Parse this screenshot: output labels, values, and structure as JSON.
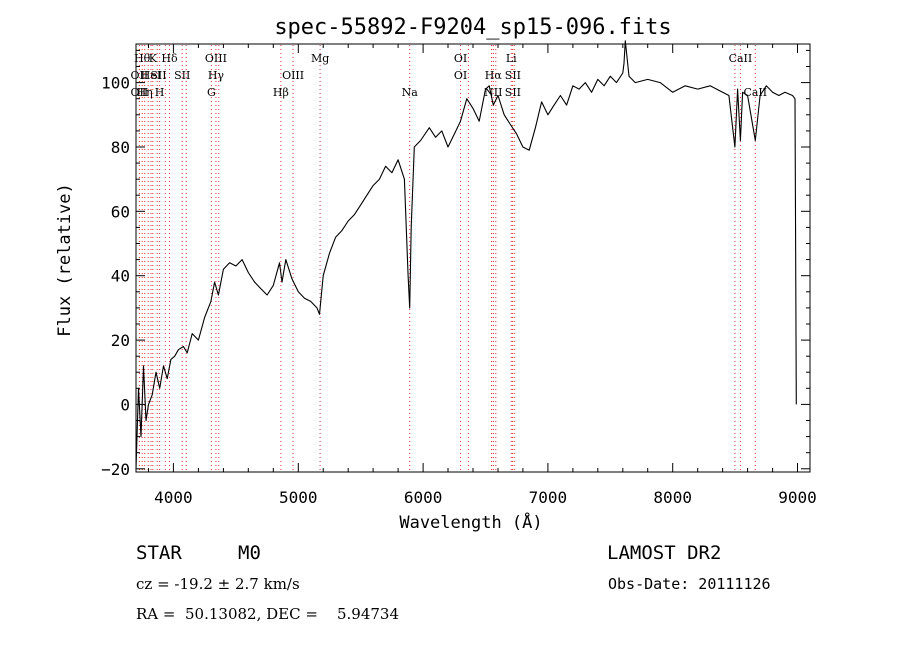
{
  "chart_data": {
    "type": "line",
    "title": "spec-55892-F9204_sp15-096.fits",
    "xlabel": "Wavelength (Å)",
    "ylabel": "Flux (relative)",
    "xlim": [
      3700,
      9100
    ],
    "ylim": [
      -21,
      112
    ],
    "xticks": [
      4000,
      5000,
      6000,
      7000,
      8000,
      9000
    ],
    "yticks": [
      -20,
      0,
      20,
      40,
      60,
      80,
      100
    ],
    "grid": false,
    "line_colors": {
      "line_marker": "#dd3333",
      "spectrum": "#000000"
    },
    "spectrum": {
      "x": [
        3700,
        3720,
        3740,
        3760,
        3780,
        3800,
        3830,
        3860,
        3890,
        3920,
        3950,
        3980,
        4010,
        4040,
        4080,
        4110,
        4150,
        4200,
        4250,
        4300,
        4330,
        4360,
        4400,
        4450,
        4500,
        4550,
        4600,
        4650,
        4700,
        4750,
        4800,
        4850,
        4870,
        4900,
        4950,
        5000,
        5050,
        5100,
        5150,
        5170,
        5200,
        5250,
        5300,
        5350,
        5400,
        5450,
        5500,
        5550,
        5600,
        5650,
        5700,
        5750,
        5800,
        5850,
        5880,
        5893,
        5905,
        5930,
        5980,
        6050,
        6100,
        6150,
        6200,
        6250,
        6300,
        6350,
        6400,
        6450,
        6500,
        6530,
        6563,
        6600,
        6650,
        6700,
        6750,
        6800,
        6850,
        6900,
        6950,
        7000,
        7050,
        7100,
        7150,
        7200,
        7250,
        7300,
        7350,
        7400,
        7450,
        7500,
        7550,
        7600,
        7610,
        7620,
        7650,
        7700,
        7800,
        7900,
        8000,
        8100,
        8200,
        8300,
        8400,
        8450,
        8498,
        8520,
        8542,
        8560,
        8600,
        8662,
        8700,
        8750,
        8800,
        8850,
        8900,
        8960,
        8980,
        8990
      ],
      "y": [
        -20,
        5,
        -10,
        12,
        -5,
        0,
        3,
        10,
        5,
        12,
        8,
        14,
        15,
        17,
        18,
        16,
        22,
        20,
        27,
        32,
        38,
        34,
        42,
        44,
        43,
        45,
        41,
        38,
        36,
        34,
        37,
        44,
        38,
        45,
        39,
        35,
        33,
        32,
        30,
        28,
        40,
        47,
        52,
        54,
        57,
        59,
        62,
        65,
        68,
        70,
        74,
        72,
        76,
        70,
        40,
        30,
        55,
        80,
        82,
        86,
        83,
        85,
        80,
        84,
        88,
        95,
        92,
        88,
        98,
        99,
        93,
        96,
        90,
        87,
        84,
        80,
        79,
        86,
        94,
        90,
        93,
        96,
        93,
        99,
        98,
        100,
        97,
        101,
        99,
        102,
        100,
        103,
        106,
        113,
        102,
        100,
        101,
        100,
        97,
        99,
        98,
        99,
        97,
        96,
        80,
        98,
        82,
        97,
        96,
        82,
        96,
        99,
        97,
        96,
        97,
        96,
        95,
        0
      ]
    },
    "line_markers": [
      {
        "x": 3750,
        "row": 0,
        "label": "Hθ"
      },
      {
        "x": 3727,
        "row": 1,
        "label": "OII"
      },
      {
        "x": 3727,
        "row": 2,
        "label": "OII"
      },
      {
        "x": 3770,
        "row": 2,
        "label": "Hη"
      },
      {
        "x": 3835,
        "row": 0,
        "label": "K"
      },
      {
        "x": 3820,
        "row": 1,
        "label": "HeI"
      },
      {
        "x": 3889,
        "row": 2,
        "label": "H"
      },
      {
        "x": 3880,
        "row": 1,
        "label": "SII"
      },
      {
        "x": 3968,
        "row": 0,
        "label": "Hδ"
      },
      {
        "x": 4070,
        "row": 1,
        "label": "SII"
      },
      {
        "x": 4340,
        "row": 0,
        "label": "OIII"
      },
      {
        "x": 4340,
        "row": 1,
        "label": "Hγ"
      },
      {
        "x": 4304,
        "row": 2,
        "label": "G"
      },
      {
        "x": 4861,
        "row": 2,
        "label": "Hβ"
      },
      {
        "x": 4959,
        "row": 1,
        "label": "OIII"
      },
      {
        "x": 5175,
        "row": 0,
        "label": "Mg"
      },
      {
        "x": 5893,
        "row": 2,
        "label": "Na"
      },
      {
        "x": 6300,
        "row": 0,
        "label": "OI"
      },
      {
        "x": 6300,
        "row": 1,
        "label": "OI"
      },
      {
        "x": 6563,
        "row": 1,
        "label": "Hα"
      },
      {
        "x": 6563,
        "row": 2,
        "label": "NII"
      },
      {
        "x": 6707,
        "row": 0,
        "label": "Li"
      },
      {
        "x": 6720,
        "row": 1,
        "label": "SII"
      },
      {
        "x": 6720,
        "row": 2,
        "label": "SII"
      },
      {
        "x": 8542,
        "row": 0,
        "label": "CaII"
      },
      {
        "x": 8662,
        "row": 2,
        "label": "CaII"
      }
    ],
    "line_marker_positions": [
      3727,
      3750,
      3770,
      3798,
      3820,
      3835,
      3870,
      3889,
      3935,
      3968,
      4070,
      4102,
      4304,
      4340,
      4363,
      4861,
      4959,
      5175,
      5893,
      6300,
      6363,
      6548,
      6563,
      6583,
      6707,
      6717,
      6731,
      8498,
      8542,
      8662
    ]
  },
  "info": {
    "object_class": "STAR",
    "subclass": "M0",
    "survey": "LAMOST DR2",
    "cz": "cz = -19.2 ± 2.7 km/s",
    "obs_date": "Obs-Date: 20111126",
    "coords": "RA =  50.13082, DEC =    5.94734"
  }
}
